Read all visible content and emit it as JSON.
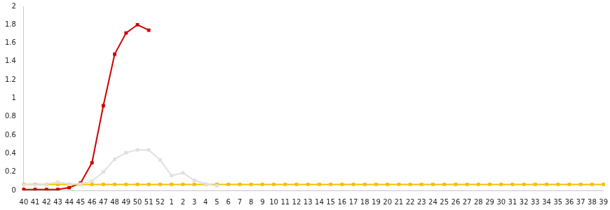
{
  "chart_data": {
    "type": "line",
    "categories": [
      "40",
      "41",
      "42",
      "43",
      "44",
      "45",
      "46",
      "47",
      "48",
      "49",
      "50",
      "51",
      "52",
      "1",
      "2",
      "3",
      "4",
      "5",
      "6",
      "7",
      "8",
      "9",
      "10",
      "11",
      "12",
      "13",
      "14",
      "15",
      "16",
      "17",
      "18",
      "19",
      "20",
      "21",
      "22",
      "23",
      "24",
      "25",
      "26",
      "27",
      "28",
      "29",
      "30",
      "31",
      "32",
      "33",
      "34",
      "35",
      "36",
      "37",
      "38",
      "39"
    ],
    "series": [
      {
        "color": "#e0e0e0",
        "marker": "square",
        "line_style": "solid",
        "values": [
          0.06,
          0.06,
          0.07,
          0.09,
          0.07,
          0.07,
          0.1,
          0.2,
          0.34,
          0.41,
          0.44,
          0.44,
          0.33,
          0.16,
          0.19,
          0.11,
          0.07,
          0.05,
          null,
          null,
          null,
          null,
          null,
          null,
          null,
          null,
          null,
          null,
          null,
          null,
          null,
          null,
          null,
          null,
          null,
          null,
          null,
          null,
          null,
          null,
          null,
          null,
          null,
          null,
          null,
          null,
          null,
          null,
          null,
          null,
          null,
          null
        ]
      },
      {
        "color": "#f2c200",
        "marker": "square",
        "line_style": "solid",
        "values": [
          0.065,
          0.065,
          0.065,
          0.065,
          0.065,
          0.065,
          0.065,
          0.065,
          0.065,
          0.065,
          0.065,
          0.065,
          0.065,
          0.065,
          0.065,
          0.065,
          0.065,
          0.065,
          0.065,
          0.065,
          0.065,
          0.065,
          0.065,
          0.065,
          0.065,
          0.065,
          0.065,
          0.065,
          0.065,
          0.065,
          0.065,
          0.065,
          0.065,
          0.065,
          0.065,
          0.065,
          0.065,
          0.065,
          0.065,
          0.065,
          0.065,
          0.065,
          0.065,
          0.065,
          0.065,
          0.065,
          0.065,
          0.065,
          0.065,
          0.065,
          0.065,
          0.065
        ]
      },
      {
        "color": "#cc0000",
        "marker": "square",
        "line_style": "solid",
        "values": [
          0.01,
          0.01,
          0.01,
          0.01,
          0.03,
          0.08,
          0.3,
          0.92,
          1.48,
          1.71,
          1.8,
          1.74,
          null,
          null,
          null,
          null,
          null,
          null,
          null,
          null,
          null,
          null,
          null,
          null,
          null,
          null,
          null,
          null,
          null,
          null,
          null,
          null,
          null,
          null,
          null,
          null,
          null,
          null,
          null,
          null,
          null,
          null,
          null,
          null,
          null,
          null,
          null,
          null,
          null,
          null,
          null,
          null
        ]
      }
    ],
    "ylim": [
      0,
      2
    ],
    "yticks": [
      0,
      0.2,
      0.4,
      0.6,
      0.8,
      1,
      1.2,
      1.4,
      1.6,
      1.8,
      2
    ],
    "grid": false
  }
}
